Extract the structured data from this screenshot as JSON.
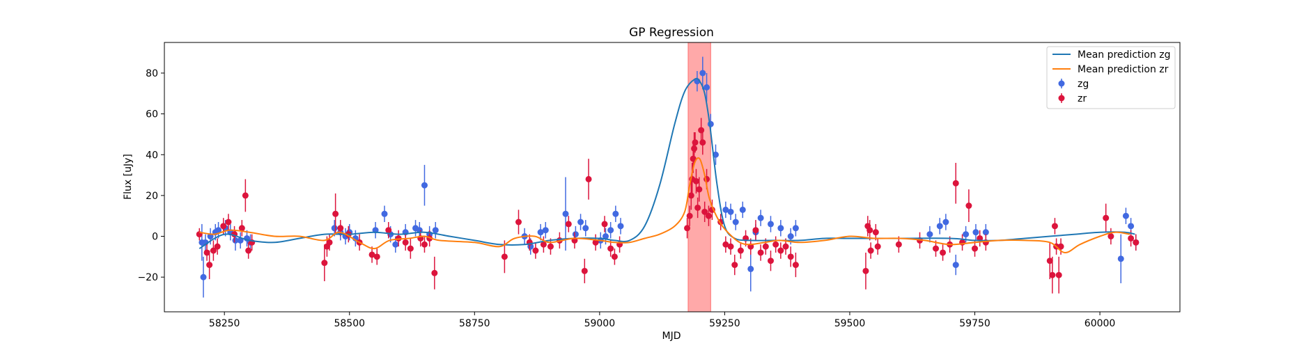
{
  "chart_data": {
    "type": "scatter",
    "title": "GP Regression",
    "xlabel": "MJD",
    "ylabel": "Flux [uJy]",
    "xlim": [
      58130,
      60160
    ],
    "ylim": [
      -37,
      95
    ],
    "xticks": [
      58250,
      58500,
      58750,
      59000,
      59250,
      59500,
      59750,
      60000
    ],
    "yticks": [
      -20,
      0,
      20,
      40,
      60,
      80
    ],
    "grid": false,
    "legend_position": "top-right",
    "highlight_span": {
      "x_start": 59177,
      "x_end": 59222,
      "color": "#ff9a9a"
    },
    "colors": {
      "mean_zg": "#1f77b4",
      "mean_zr": "#ff7f0e",
      "zg": "#4169e1",
      "zr": "#dc143c"
    },
    "series": [
      {
        "name": "Mean prediction zg",
        "kind": "line",
        "x": [
          58200,
          58250,
          58300,
          58350,
          58400,
          58450,
          58500,
          58550,
          58600,
          58650,
          58700,
          58750,
          58800,
          58850,
          58900,
          58950,
          59000,
          59030,
          59060,
          59090,
          59120,
          59150,
          59170,
          59190,
          59200,
          59210,
          59220,
          59235,
          59250,
          59270,
          59300,
          59350,
          59400,
          59450,
          59500,
          59600,
          59700,
          59750,
          59800,
          59850,
          59900,
          59950,
          60000,
          60050,
          60070
        ],
        "y": [
          -6,
          1,
          -2,
          -3,
          -1,
          1,
          1,
          2,
          1,
          2,
          0,
          -2,
          -4,
          -4,
          -2,
          -1,
          -1,
          -2,
          -2,
          5,
          25,
          55,
          71,
          77,
          76,
          70,
          55,
          25,
          5,
          -1,
          -2,
          -2,
          -2,
          -1,
          -1,
          -1,
          -1,
          -2,
          -2,
          -1,
          0,
          1,
          2,
          2,
          1
        ]
      },
      {
        "name": "Mean prediction zr",
        "kind": "line",
        "x": [
          58200,
          58230,
          58260,
          58300,
          58350,
          58400,
          58450,
          58480,
          58520,
          58550,
          58580,
          58620,
          58650,
          58680,
          58750,
          58800,
          58830,
          58870,
          58900,
          58950,
          59000,
          59030,
          59060,
          59090,
          59120,
          59150,
          59170,
          59180,
          59190,
          59200,
          59210,
          59220,
          59240,
          59260,
          59280,
          59300,
          59330,
          59360,
          59400,
          59450,
          59500,
          59550,
          59600,
          59650,
          59700,
          59750,
          59800,
          59850,
          59900,
          59930,
          59960,
          60000,
          60030,
          60060
        ],
        "y": [
          2,
          1,
          3,
          2,
          0,
          0,
          -2,
          2,
          -3,
          -6,
          -2,
          -1,
          0,
          -2,
          -3,
          -5,
          -1,
          0,
          -3,
          -1,
          -2,
          -3,
          -3,
          -1,
          1,
          5,
          12,
          25,
          36,
          38,
          30,
          18,
          7,
          1,
          -3,
          -4,
          -3,
          -2,
          -3,
          -2,
          0,
          -1,
          -1,
          -2,
          -4,
          -3,
          -2,
          -2,
          -3,
          -8,
          -4,
          0,
          2,
          1
        ]
      },
      {
        "name": "zg",
        "kind": "errorbar",
        "points": [
          [
            58205,
            -3,
            9
          ],
          [
            58208,
            -20,
            10
          ],
          [
            58212,
            -3,
            4
          ],
          [
            58222,
            0,
            4
          ],
          [
            58232,
            2,
            4
          ],
          [
            58238,
            3,
            4
          ],
          [
            58252,
            4,
            4
          ],
          [
            58262,
            2,
            4
          ],
          [
            58272,
            -2,
            5
          ],
          [
            58282,
            -2,
            4
          ],
          [
            58295,
            -1,
            4
          ],
          [
            58302,
            -3,
            4
          ],
          [
            58470,
            4,
            4
          ],
          [
            58482,
            2,
            4
          ],
          [
            58492,
            0,
            4
          ],
          [
            58500,
            2,
            4
          ],
          [
            58512,
            -1,
            4
          ],
          [
            58552,
            3,
            4
          ],
          [
            58570,
            11,
            4
          ],
          [
            58582,
            1,
            4
          ],
          [
            58592,
            -4,
            4
          ],
          [
            58612,
            2,
            4
          ],
          [
            58632,
            4,
            4
          ],
          [
            58640,
            3,
            4
          ],
          [
            58650,
            25,
            10
          ],
          [
            58660,
            1,
            4
          ],
          [
            58672,
            3,
            4
          ],
          [
            58850,
            0,
            4
          ],
          [
            58862,
            -5,
            4
          ],
          [
            58882,
            2,
            4
          ],
          [
            58892,
            3,
            4
          ],
          [
            58932,
            11,
            18
          ],
          [
            58952,
            1,
            4
          ],
          [
            58962,
            7,
            4
          ],
          [
            58972,
            4,
            4
          ],
          [
            59002,
            -2,
            4
          ],
          [
            59012,
            0,
            4
          ],
          [
            59022,
            3,
            4
          ],
          [
            59032,
            11,
            4
          ],
          [
            59042,
            5,
            4
          ],
          [
            59195,
            76,
            5
          ],
          [
            59206,
            80,
            8
          ],
          [
            59214,
            73,
            7
          ],
          [
            59222,
            55,
            5
          ],
          [
            59232,
            40,
            5
          ],
          [
            59252,
            13,
            4
          ],
          [
            59262,
            12,
            4
          ],
          [
            59272,
            7,
            4
          ],
          [
            59286,
            13,
            4
          ],
          [
            59302,
            -16,
            11
          ],
          [
            59312,
            2,
            4
          ],
          [
            59322,
            9,
            4
          ],
          [
            59342,
            6,
            4
          ],
          [
            59362,
            4,
            4
          ],
          [
            59382,
            0,
            4
          ],
          [
            59392,
            4,
            4
          ],
          [
            59660,
            1,
            4
          ],
          [
            59680,
            5,
            4
          ],
          [
            59692,
            7,
            4
          ],
          [
            59712,
            -14,
            5
          ],
          [
            59732,
            1,
            4
          ],
          [
            59752,
            2,
            4
          ],
          [
            59772,
            2,
            4
          ],
          [
            60042,
            -11,
            12
          ],
          [
            60052,
            10,
            4
          ],
          [
            60062,
            5,
            4
          ],
          [
            60072,
            -3,
            4
          ]
        ]
      },
      {
        "name": "zr",
        "kind": "errorbar",
        "points": [
          [
            58200,
            1,
            3
          ],
          [
            58215,
            -8,
            4
          ],
          [
            58220,
            -14,
            7
          ],
          [
            58228,
            -7,
            5
          ],
          [
            58236,
            -5,
            4
          ],
          [
            58248,
            5,
            4
          ],
          [
            58258,
            7,
            4
          ],
          [
            58270,
            1,
            4
          ],
          [
            58285,
            4,
            4
          ],
          [
            58292,
            20,
            8
          ],
          [
            58298,
            -7,
            4
          ],
          [
            58305,
            -3,
            4
          ],
          [
            58450,
            -13,
            9
          ],
          [
            58455,
            -5,
            5
          ],
          [
            58460,
            -3,
            4
          ],
          [
            58472,
            11,
            10
          ],
          [
            58482,
            4,
            4
          ],
          [
            58498,
            1,
            4
          ],
          [
            58520,
            -3,
            4
          ],
          [
            58545,
            -9,
            4
          ],
          [
            58555,
            -10,
            4
          ],
          [
            58578,
            3,
            4
          ],
          [
            58598,
            -1,
            4
          ],
          [
            58612,
            -3,
            4
          ],
          [
            58622,
            -6,
            5
          ],
          [
            58642,
            -1,
            4
          ],
          [
            58650,
            -4,
            4
          ],
          [
            58660,
            -1,
            4
          ],
          [
            58670,
            -18,
            8
          ],
          [
            58810,
            -10,
            8
          ],
          [
            58838,
            7,
            6
          ],
          [
            58860,
            -3,
            4
          ],
          [
            58872,
            -7,
            4
          ],
          [
            58888,
            -4,
            4
          ],
          [
            58902,
            -5,
            4
          ],
          [
            58920,
            -2,
            4
          ],
          [
            58938,
            6,
            4
          ],
          [
            58950,
            -2,
            4
          ],
          [
            58970,
            -17,
            6
          ],
          [
            58978,
            28,
            10
          ],
          [
            58992,
            -3,
            4
          ],
          [
            59010,
            6,
            4
          ],
          [
            59022,
            -6,
            4
          ],
          [
            59030,
            -10,
            4
          ],
          [
            59040,
            -4,
            4
          ],
          [
            59175,
            4,
            5
          ],
          [
            59180,
            10,
            5
          ],
          [
            59183,
            20,
            7
          ],
          [
            59185,
            28,
            8
          ],
          [
            59187,
            38,
            7
          ],
          [
            59189,
            43,
            8
          ],
          [
            59191,
            46,
            5
          ],
          [
            59193,
            27,
            6
          ],
          [
            59196,
            14,
            5
          ],
          [
            59199,
            23,
            6
          ],
          [
            59203,
            52,
            6
          ],
          [
            59206,
            46,
            6
          ],
          [
            59210,
            12,
            5
          ],
          [
            59214,
            28,
            5
          ],
          [
            59218,
            10,
            5
          ],
          [
            59225,
            13,
            5
          ],
          [
            59242,
            7,
            4
          ],
          [
            59252,
            -4,
            4
          ],
          [
            59262,
            -5,
            4
          ],
          [
            59270,
            -14,
            5
          ],
          [
            59282,
            -7,
            4
          ],
          [
            59292,
            -1,
            4
          ],
          [
            59302,
            -5,
            4
          ],
          [
            59312,
            3,
            5
          ],
          [
            59322,
            -8,
            4
          ],
          [
            59332,
            -5,
            4
          ],
          [
            59342,
            -12,
            5
          ],
          [
            59352,
            -4,
            4
          ],
          [
            59362,
            -7,
            4
          ],
          [
            59372,
            -5,
            4
          ],
          [
            59382,
            -10,
            5
          ],
          [
            59392,
            -14,
            6
          ],
          [
            59532,
            -17,
            9
          ],
          [
            59536,
            5,
            5
          ],
          [
            59540,
            3,
            5
          ],
          [
            59542,
            -7,
            4
          ],
          [
            59552,
            2,
            4
          ],
          [
            59556,
            -5,
            4
          ],
          [
            59598,
            -4,
            4
          ],
          [
            59640,
            -2,
            4
          ],
          [
            59672,
            -6,
            4
          ],
          [
            59686,
            -8,
            4
          ],
          [
            59700,
            -4,
            4
          ],
          [
            59712,
            26,
            10
          ],
          [
            59725,
            -3,
            4
          ],
          [
            59738,
            15,
            8
          ],
          [
            59750,
            -6,
            4
          ],
          [
            59760,
            -1,
            4
          ],
          [
            59772,
            -3,
            4
          ],
          [
            59900,
            -12,
            9
          ],
          [
            59905,
            -19,
            9
          ],
          [
            59910,
            5,
            4
          ],
          [
            59913,
            -5,
            4
          ],
          [
            59918,
            -19,
            9
          ],
          [
            59922,
            -5,
            4
          ],
          [
            60012,
            9,
            7
          ],
          [
            60022,
            0,
            4
          ],
          [
            60062,
            -1,
            4
          ],
          [
            60072,
            -3,
            4
          ]
        ]
      }
    ]
  }
}
